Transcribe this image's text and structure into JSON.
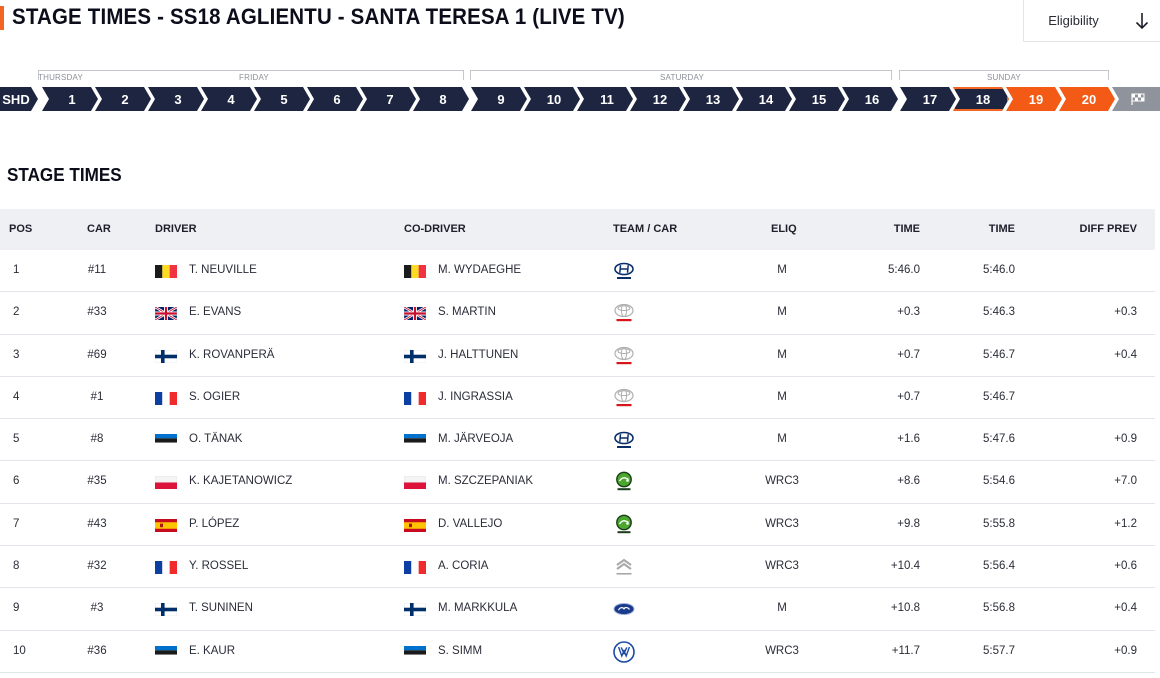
{
  "header": {
    "title": "STAGE TIMES - SS18 AGLIENTU - SANTA TERESA 1 (LIVE TV)",
    "eligibility_label": "Eligibility",
    "eligibility_icon": "arrow-down-icon"
  },
  "stage_nav": {
    "days": [
      "THURSDAY",
      "FRIDAY",
      "SATURDAY",
      "SUNDAY"
    ],
    "first_item": "SHD",
    "stages": [
      "1",
      "2",
      "3",
      "4",
      "5",
      "6",
      "7",
      "8",
      "9",
      "10",
      "11",
      "12",
      "13",
      "14",
      "15",
      "16",
      "17",
      "18",
      "19",
      "20"
    ],
    "current_stage": "18",
    "finish_icon": "finish-flag-icon",
    "colors": {
      "completed": "#1d2540",
      "current_outline": "#f26522",
      "upcoming": "#f25a15",
      "finish": "#8f939c"
    }
  },
  "section_title": "STAGE TIMES",
  "table": {
    "headers": [
      "POS",
      "CAR",
      "DRIVER",
      "CO-DRIVER",
      "TEAM / CAR",
      "ELIQ",
      "TIME",
      "TIME",
      "DIFF PREV"
    ],
    "rows": [
      {
        "pos": "1",
        "car": "#11",
        "driver": "T. NEUVILLE",
        "driver_flag": "BEL",
        "codriver": "M. WYDAEGHE",
        "codriver_flag": "BEL",
        "team": "hyundai-logo",
        "eliq": "M",
        "time": "5:46.0",
        "total": "5:46.0",
        "diff": ""
      },
      {
        "pos": "2",
        "car": "#33",
        "driver": "E. EVANS",
        "driver_flag": "GBR",
        "codriver": "S. MARTIN",
        "codriver_flag": "GBR",
        "team": "toyota-logo",
        "eliq": "M",
        "time": "+0.3",
        "total": "5:46.3",
        "diff": "+0.3"
      },
      {
        "pos": "3",
        "car": "#69",
        "driver": "K. ROVANPERÄ",
        "driver_flag": "FIN",
        "codriver": "J. HALTTUNEN",
        "codriver_flag": "FIN",
        "team": "toyota-logo",
        "eliq": "M",
        "time": "+0.7",
        "total": "5:46.7",
        "diff": "+0.4"
      },
      {
        "pos": "4",
        "car": "#1",
        "driver": "S. OGIER",
        "driver_flag": "FRA",
        "codriver": "J. INGRASSIA",
        "codriver_flag": "FRA",
        "team": "toyota-logo",
        "eliq": "M",
        "time": "+0.7",
        "total": "5:46.7",
        "diff": ""
      },
      {
        "pos": "5",
        "car": "#8",
        "driver": "O. TÄNAK",
        "driver_flag": "EST",
        "codriver": "M. JÄRVEOJA",
        "codriver_flag": "EST",
        "team": "hyundai-logo",
        "eliq": "M",
        "time": "+1.6",
        "total": "5:47.6",
        "diff": "+0.9"
      },
      {
        "pos": "6",
        "car": "#35",
        "driver": "K. KAJETANOWICZ",
        "driver_flag": "POL",
        "codriver": "M. SZCZEPANIAK",
        "codriver_flag": "POL",
        "team": "skoda-logo",
        "eliq": "WRC3",
        "time": "+8.6",
        "total": "5:54.6",
        "diff": "+7.0"
      },
      {
        "pos": "7",
        "car": "#43",
        "driver": "P. LÓPEZ",
        "driver_flag": "ESP",
        "codriver": "D. VALLEJO",
        "codriver_flag": "ESP",
        "team": "skoda-logo",
        "eliq": "WRC3",
        "time": "+9.8",
        "total": "5:55.8",
        "diff": "+1.2"
      },
      {
        "pos": "8",
        "car": "#32",
        "driver": "Y. ROSSEL",
        "driver_flag": "FRA",
        "codriver": "A. CORIA",
        "codriver_flag": "FRA",
        "team": "citroen-logo",
        "eliq": "WRC3",
        "time": "+10.4",
        "total": "5:56.4",
        "diff": "+0.6"
      },
      {
        "pos": "9",
        "car": "#3",
        "driver": "T. SUNINEN",
        "driver_flag": "FIN",
        "codriver": "M. MARKKULA",
        "codriver_flag": "FIN",
        "team": "ford-logo",
        "eliq": "M",
        "time": "+10.8",
        "total": "5:56.8",
        "diff": "+0.4"
      },
      {
        "pos": "10",
        "car": "#36",
        "driver": "E. KAUR",
        "driver_flag": "EST",
        "codriver": "S. SIMM",
        "codriver_flag": "EST",
        "team": "volkswagen-logo",
        "eliq": "WRC3",
        "time": "+11.7",
        "total": "5:57.7",
        "diff": "+0.9"
      }
    ]
  }
}
